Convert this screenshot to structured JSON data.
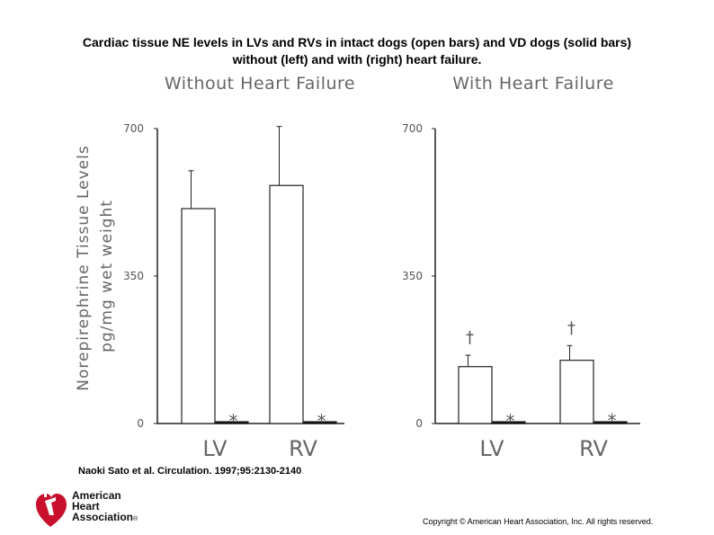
{
  "title_line1": "Cardiac tissue NE levels in LVs and RVs in intact dogs (open bars) and VD dogs (solid bars)",
  "title_line2": "without (left) and with (right) heart failure.",
  "citation": "Naoki Sato et al. Circulation. 1997;95:2130-2140",
  "copyright": "Copyright © American Heart Association, Inc. All rights reserved.",
  "logo": {
    "line1": "American",
    "line2": "Heart",
    "line3": "Association",
    "mark": "®",
    "color": "#c8102e"
  },
  "chart_data": [
    {
      "type": "bar",
      "title": "Without Heart Failure",
      "ylabel_line1": "Norepirephrine Tissue Levels",
      "ylabel_line2": "pg/mg wet weight",
      "ylim": [
        0,
        700
      ],
      "yticks": [
        "0",
        "350",
        "700"
      ],
      "categories": [
        "LV",
        "RV"
      ],
      "series": [
        {
          "style": "open",
          "values": [
            510,
            565
          ],
          "errors": [
            90,
            140
          ]
        },
        {
          "style": "solid",
          "values": [
            3,
            3
          ],
          "errors": [
            0,
            0
          ]
        }
      ],
      "markers": [
        {
          "category": "LV",
          "series": 1,
          "symbol": "*"
        },
        {
          "category": "RV",
          "series": 1,
          "symbol": "*"
        }
      ]
    },
    {
      "type": "bar",
      "title": "With Heart Failure",
      "ylim": [
        0,
        700
      ],
      "yticks": [
        "0",
        "350",
        "700"
      ],
      "categories": [
        "LV",
        "RV"
      ],
      "series": [
        {
          "style": "open",
          "values": [
            135,
            150
          ],
          "errors": [
            27,
            35
          ]
        },
        {
          "style": "solid",
          "values": [
            3,
            4
          ],
          "errors": [
            0,
            0
          ]
        }
      ],
      "markers": [
        {
          "category": "LV",
          "series": 0,
          "symbol": "†"
        },
        {
          "category": "RV",
          "series": 0,
          "symbol": "†"
        },
        {
          "category": "LV",
          "series": 1,
          "symbol": "*"
        },
        {
          "category": "RV",
          "series": 1,
          "symbol": "*"
        }
      ]
    }
  ]
}
